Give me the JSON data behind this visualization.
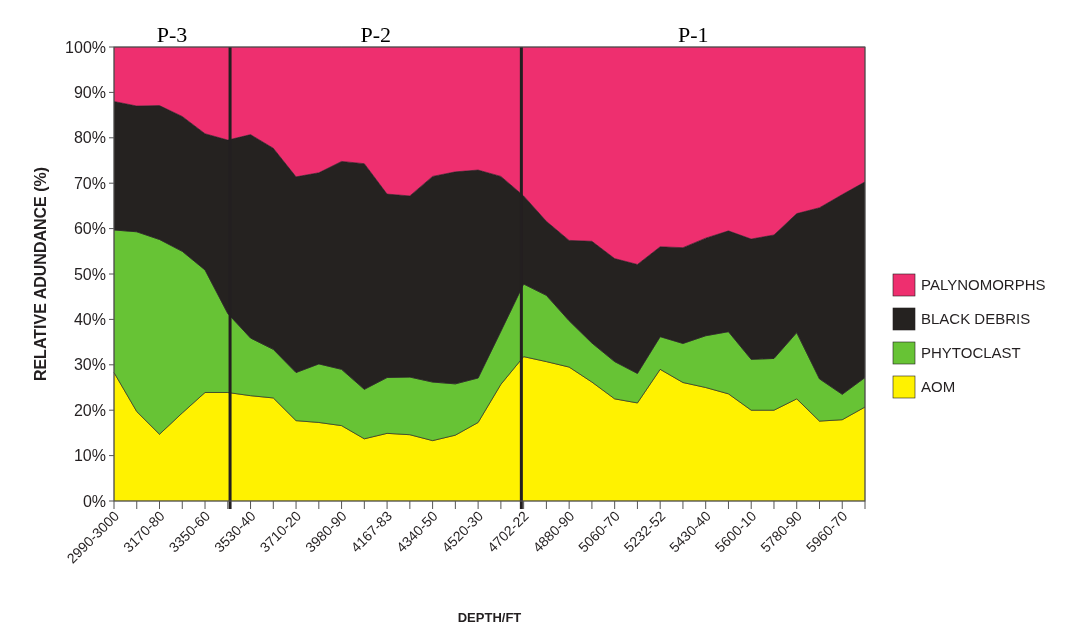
{
  "chart_data": {
    "type": "area",
    "stacked": true,
    "xlabel": "DEPTH/FT",
    "ylabel": "RELATIVE ADUNDANCE (%)",
    "categories": [
      "2990-3000",
      null,
      "3170-80",
      null,
      "3350-60",
      null,
      "3530-40",
      null,
      "3710-20",
      null,
      "3980-90",
      null,
      "4167-83",
      null,
      "4340-50",
      null,
      "4520-30",
      null,
      "4702-22",
      null,
      "4880-90",
      null,
      "5060-70",
      null,
      "5232-52",
      null,
      "5430-40",
      null,
      "5600-10",
      null,
      "5780-90",
      null,
      "5960-70",
      null
    ],
    "ylim": [
      0,
      100
    ],
    "yticks": [
      {
        "value": 0,
        "label": "0%"
      },
      {
        "value": 10,
        "label": "10%"
      },
      {
        "value": 20,
        "label": "20%"
      },
      {
        "value": 30,
        "label": "30%"
      },
      {
        "value": 40,
        "label": "40%"
      },
      {
        "value": 50,
        "label": "50%"
      },
      {
        "value": 60,
        "label": "60%"
      },
      {
        "value": 70,
        "label": "70%"
      },
      {
        "value": 80,
        "label": "80%"
      },
      {
        "value": 90,
        "label": "90%"
      },
      {
        "value": 100,
        "label": "100%"
      }
    ],
    "legend": "right",
    "series": [
      {
        "name": "AOM",
        "color": "#fff200",
        "values": [
          28.3,
          19.7,
          14.7,
          19.4,
          23.9,
          23.9,
          23.2,
          22.7,
          17.7,
          17.3,
          16.6,
          13.7,
          14.9,
          14.6,
          13.3,
          14.5,
          17.3,
          25.7,
          31.8,
          30.7,
          29.5,
          26.2,
          22.5,
          21.6,
          29,
          26.1,
          25,
          23.6,
          20,
          20,
          22.5,
          17.6,
          17.9,
          20.7
        ]
      },
      {
        "name": "PHYTOCLAST",
        "color": "#67c335",
        "values": [
          31.4,
          39.6,
          42.9,
          35.6,
          27,
          17.4,
          12.7,
          10.7,
          10.6,
          12.9,
          12.4,
          10.9,
          12.3,
          12.7,
          12.9,
          11.3,
          9.8,
          11.7,
          16,
          14.6,
          10.2,
          8.6,
          8.2,
          6.5,
          7.2,
          8.6,
          11.4,
          13.7,
          11.2,
          11.4,
          14.6,
          9.3,
          5.6,
          6.5
        ]
      },
      {
        "name": "BLACK DEBRIS",
        "color": "#252220",
        "values": [
          28.3,
          27.7,
          29.5,
          29.7,
          30,
          38.2,
          44.8,
          44.3,
          43.1,
          42.1,
          45.8,
          49.7,
          40.4,
          39.9,
          45.3,
          46.7,
          45.8,
          34.1,
          19.4,
          16.3,
          17.7,
          22.4,
          22.7,
          24,
          19.8,
          21.1,
          21.5,
          22.2,
          26.5,
          27.2,
          26.2,
          37.7,
          44,
          43.1
        ]
      },
      {
        "name": "PALYNOMORPHS",
        "color": "#ee2f6f",
        "values": [
          12,
          13,
          12.9,
          15.3,
          19.1,
          20.5,
          19.3,
          22.3,
          28.6,
          27.7,
          25.2,
          25.7,
          32.4,
          32.8,
          28.5,
          27.5,
          27.1,
          28.5,
          32.8,
          38.4,
          42.6,
          42.8,
          46.6,
          47.9,
          44,
          44.2,
          42.1,
          40.5,
          42.3,
          41.4,
          36.7,
          35.4,
          32.5,
          29.7
        ]
      }
    ],
    "annotations": [
      "P-3",
      "P-2",
      "P-1"
    ]
  }
}
